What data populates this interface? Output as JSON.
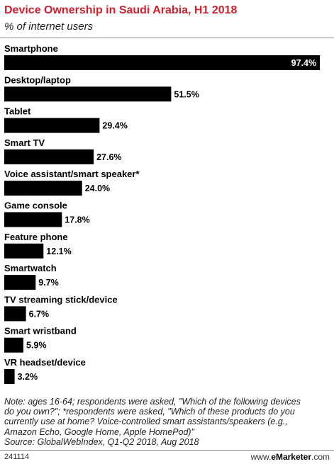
{
  "header": {
    "title": "Device Ownership in Saudi Arabia, H1 2018",
    "subtitle": "% of internet users"
  },
  "chart_data": {
    "type": "bar",
    "orientation": "horizontal",
    "categories": [
      "Smartphone",
      "Desktop/laptop",
      "Tablet",
      "Smart TV",
      "Voice assistant/smart speaker*",
      "Game console",
      "Feature phone",
      "Smartwatch",
      "TV streaming stick/device",
      "Smart wristband",
      "VR headset/device"
    ],
    "values": [
      97.4,
      51.5,
      29.4,
      27.6,
      24.0,
      17.8,
      12.1,
      9.7,
      6.7,
      5.9,
      3.2
    ],
    "value_labels": [
      "97.4%",
      "51.5%",
      "29.4%",
      "27.6%",
      "24.0%",
      "17.8%",
      "12.1%",
      "9.7%",
      "6.7%",
      "5.9%",
      "3.2%"
    ],
    "xlim": [
      0,
      100
    ],
    "grid": false,
    "bar_color": "#000000"
  },
  "footer": {
    "note_lines": [
      "Note: ages 16-64; respondents were asked, \"Which of the following devices",
      "do you own?\"; *respondents were asked, \"Which of these products do you",
      "currently use at home? Voice-controlled smart assistants/speakers (e.g.,",
      "Amazon Echo, Google Home, Apple HomePod)\"",
      "Source: GlobalWebIndex, Q1-Q2 2018, Aug 2018"
    ],
    "chart_id": "241114",
    "brand_prefix": "www.",
    "brand_name": "eMarketer",
    "brand_suffix": ".com"
  },
  "colors": {
    "title": "#d0202e",
    "bar": "#000000",
    "inside_label": "#ffffff"
  }
}
